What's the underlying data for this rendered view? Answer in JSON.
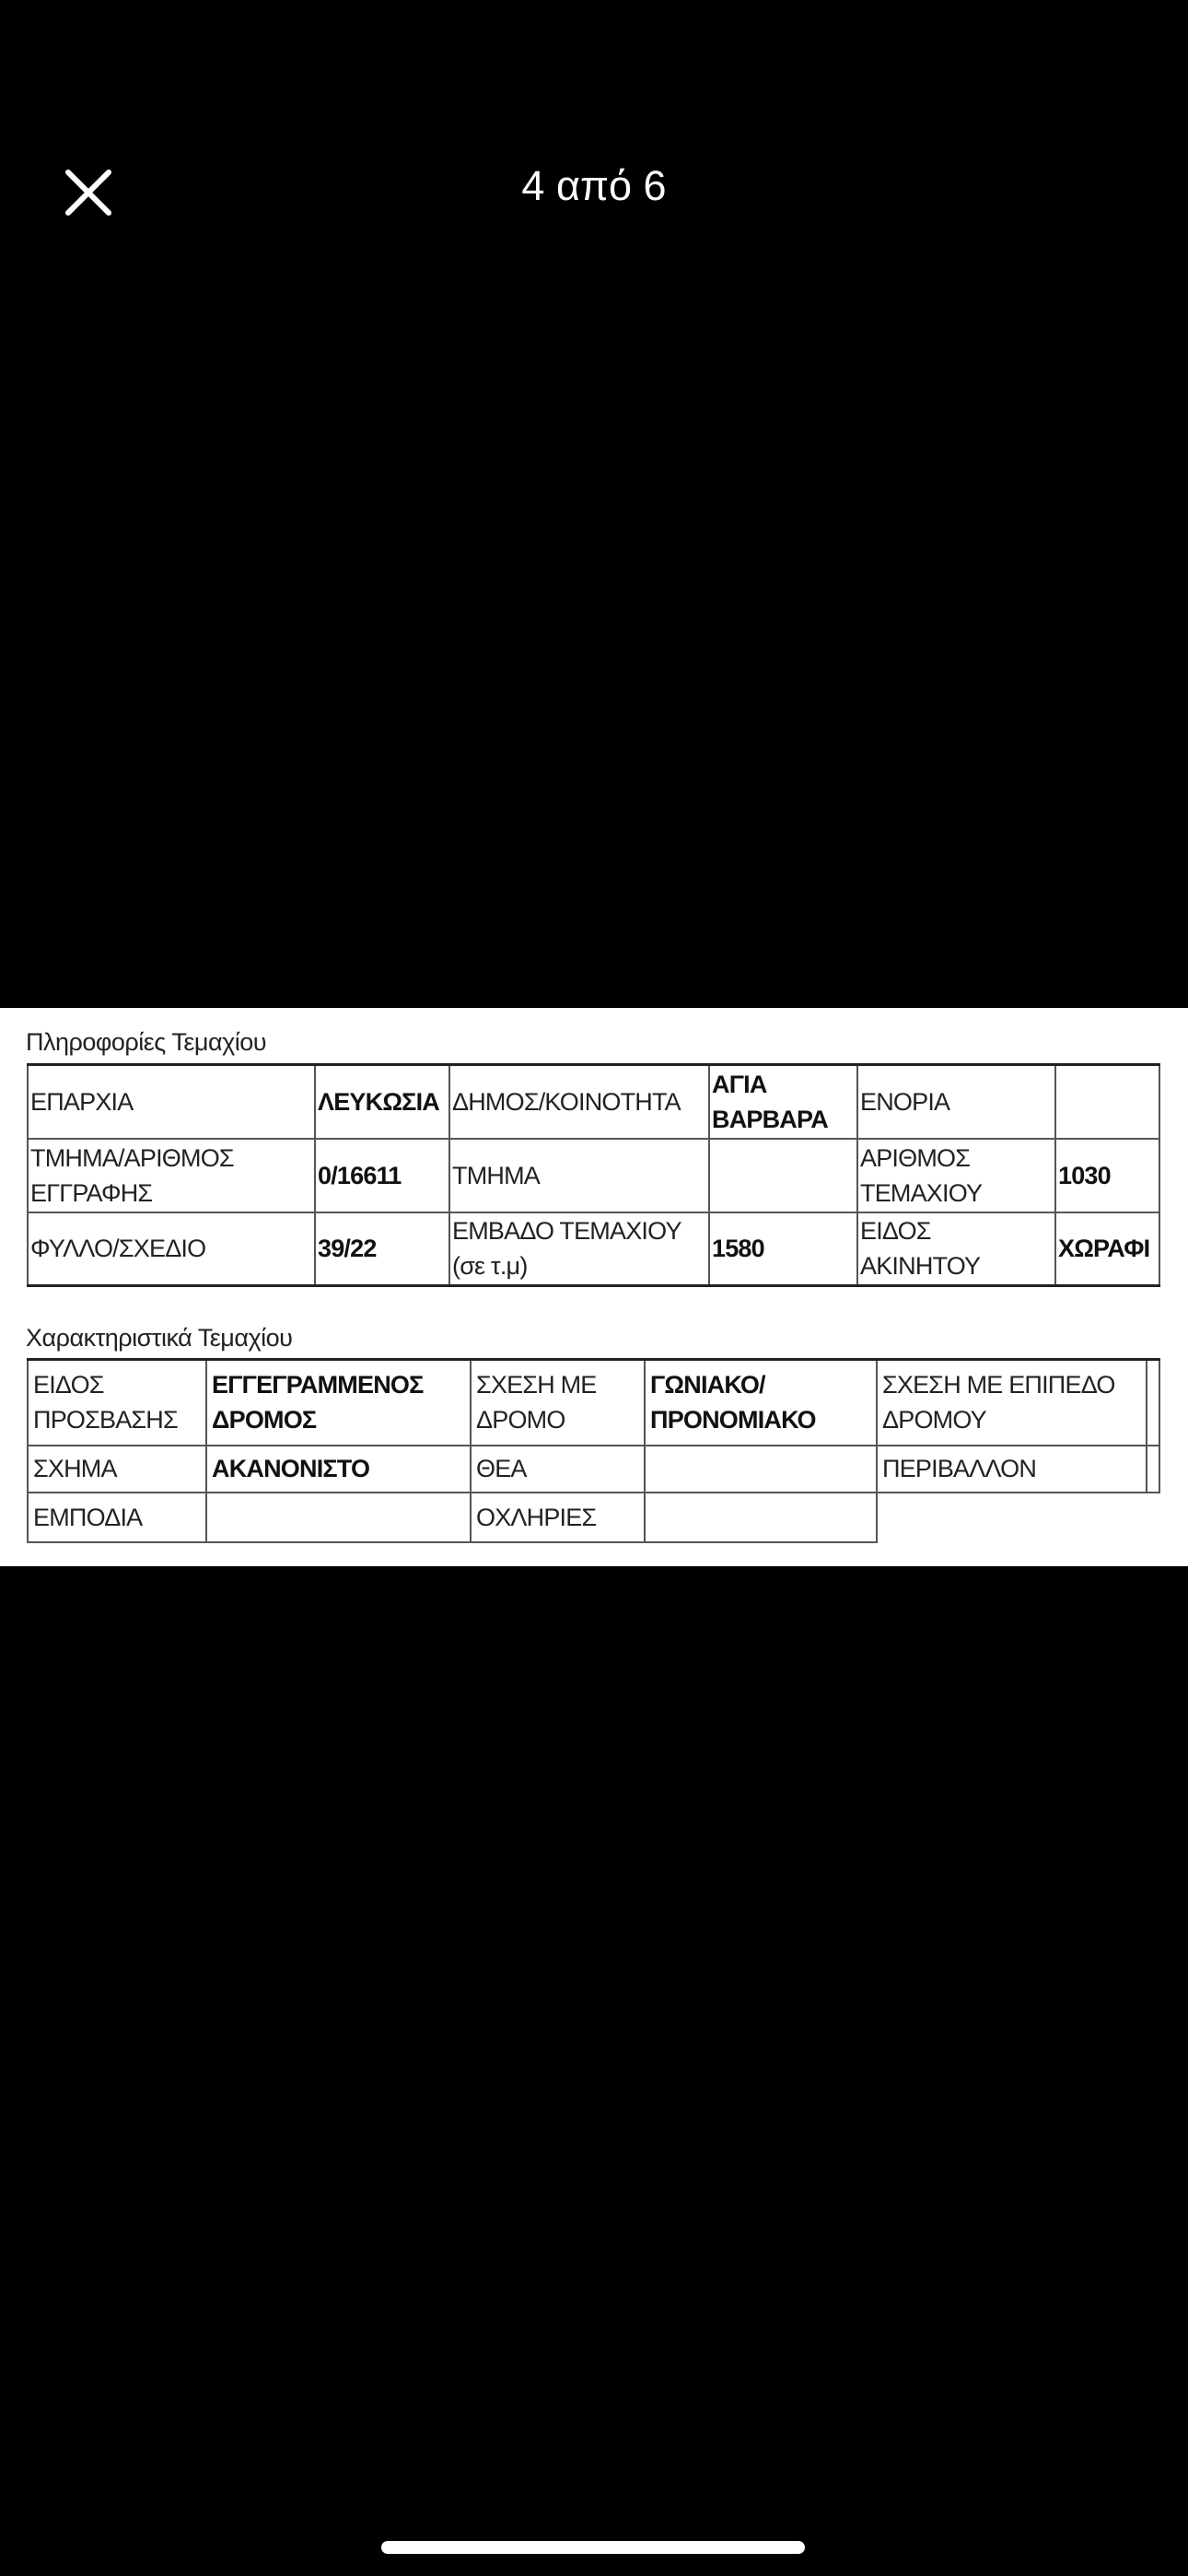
{
  "header": {
    "counter": "4 από 6",
    "close_icon": "close-x-icon"
  },
  "parcel_info": {
    "title": "Πληροφορίες Τεμαχίου",
    "rows": [
      [
        "ΕΠΑΡΧΙΑ",
        "ΛΕΥΚΩΣΙΑ",
        "ΔΗΜΟΣ/ΚΟΙΝΟΤΗΤΑ",
        "ΑΓΙΑ ΒΑΡΒΑΡΑ",
        "ΕΝΟΡΙΑ",
        ""
      ],
      [
        "ΤΜΗΜΑ/ΑΡΙΘΜΟΣ ΕΓΓΡΑΦΗΣ",
        "0/16611",
        "ΤΜΗΜΑ",
        "",
        "ΑΡΙΘΜΟΣ ΤΕΜΑΧΙΟΥ",
        "1030"
      ],
      [
        "ΦΥΛΛΟ/ΣΧΕΔΙΟ",
        "39/22",
        "ΕΜΒΑΔΟ ΤΕΜΑΧΙΟΥ (σε τ.μ)",
        "1580",
        "ΕΙΔΟΣ ΑΚΙΝΗΤΟΥ",
        "ΧΩΡΑΦΙ"
      ]
    ]
  },
  "parcel_features": {
    "title": "Χαρακτηριστικά Τεμαχίου",
    "rows": [
      [
        "ΕΙΔΟΣ ΠΡΟΣΒΑΣΗΣ",
        "ΕΓΓΕΓΡΑΜΜΕΝΟΣ ΔΡΟΜΟΣ",
        "ΣΧΕΣΗ ΜΕ ΔΡΟΜΟ",
        "ΓΩΝΙΑΚΟ/ ΠΡΟΝΟΜΙΑΚΟ",
        "ΣΧΕΣΗ ΜΕ ΕΠΙΠΕΔΟ ΔΡΟΜΟΥ",
        ""
      ],
      [
        "ΣΧΗΜΑ",
        "ΑΚΑΝΟΝΙΣΤΟ",
        "ΘΕΑ",
        "",
        "ΠΕΡΙΒΑΛΛΟΝ",
        ""
      ],
      [
        "ΕΜΠΟΔΙΑ",
        "",
        "ΟΧΛΗΡΙΕΣ",
        ""
      ]
    ]
  }
}
